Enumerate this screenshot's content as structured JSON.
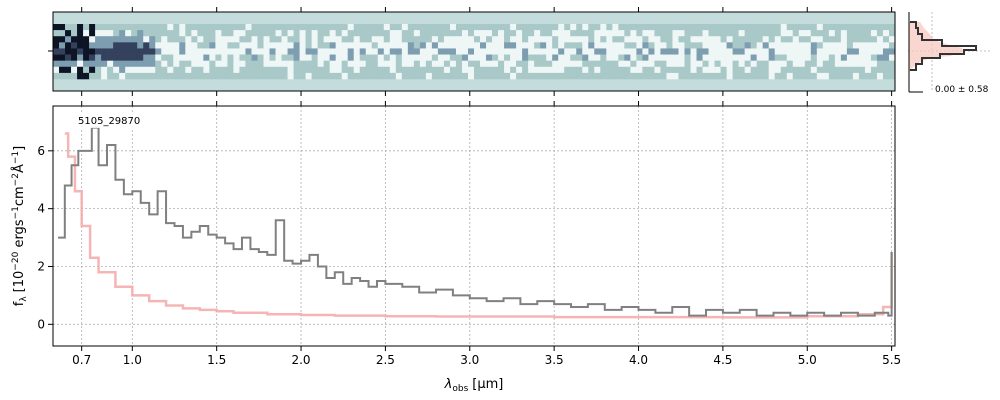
{
  "chart_data": {
    "type": "line",
    "object_id": "5105_29870",
    "xlabel": "λobs [μm]",
    "xlabel_main": "λ",
    "xlabel_sub": "obs",
    "xlabel_unit": "[μm]",
    "ylabel": "fλ [10−20 ergs−1cm−2Å−1]",
    "ylabel_parts": {
      "f": "f",
      "f_sub": "λ",
      "open": "[10",
      "exp1": "−20",
      "mid1": " ergs",
      "exp2": "−1",
      "mid2": "cm",
      "exp3": "−2",
      "mid3": "Å",
      "exp4": "−1",
      "close": "]"
    },
    "x_ticks": [
      "0.7",
      "1.0",
      "1.5",
      "2.0",
      "2.5",
      "3.0",
      "3.5",
      "4.0",
      "4.5",
      "5.0",
      "5.5"
    ],
    "x_tick_values": [
      0.7,
      1.0,
      1.5,
      2.0,
      2.5,
      3.0,
      3.5,
      4.0,
      4.5,
      5.0,
      5.5
    ],
    "y_ticks": [
      "0",
      "2",
      "4",
      "6"
    ],
    "y_tick_values": [
      0,
      2,
      4,
      6
    ],
    "xlim": [
      0.53,
      5.52
    ],
    "ylim": [
      -0.75,
      7.55
    ],
    "grid": true,
    "noise_label": "0.00 ± 0.58",
    "series": [
      {
        "role": "flux",
        "color": "#808080",
        "x": [
          0.56,
          0.6,
          0.64,
          0.68,
          0.72,
          0.76,
          0.8,
          0.85,
          0.9,
          0.95,
          1.0,
          1.05,
          1.1,
          1.15,
          1.2,
          1.25,
          1.3,
          1.35,
          1.4,
          1.45,
          1.5,
          1.55,
          1.6,
          1.65,
          1.7,
          1.75,
          1.8,
          1.85,
          1.9,
          1.95,
          2.0,
          2.05,
          2.1,
          2.15,
          2.2,
          2.25,
          2.3,
          2.35,
          2.4,
          2.45,
          2.5,
          2.6,
          2.7,
          2.8,
          2.9,
          3.0,
          3.1,
          3.2,
          3.3,
          3.4,
          3.5,
          3.6,
          3.7,
          3.8,
          3.9,
          4.0,
          4.1,
          4.2,
          4.3,
          4.4,
          4.5,
          4.6,
          4.7,
          4.8,
          4.9,
          5.0,
          5.1,
          5.2,
          5.3,
          5.4,
          5.48,
          5.5
        ],
        "y": [
          3.0,
          4.8,
          5.5,
          6.0,
          6.0,
          6.8,
          5.5,
          6.2,
          5.0,
          4.5,
          4.6,
          4.2,
          3.8,
          4.6,
          3.5,
          3.4,
          3.0,
          3.2,
          3.4,
          3.1,
          3.0,
          2.8,
          2.6,
          3.0,
          2.6,
          2.5,
          2.4,
          3.6,
          2.2,
          2.1,
          2.2,
          2.4,
          2.0,
          1.6,
          1.8,
          1.4,
          1.6,
          1.5,
          1.3,
          1.5,
          1.4,
          1.3,
          1.1,
          1.2,
          1.0,
          0.9,
          0.8,
          0.9,
          0.7,
          0.8,
          0.7,
          0.6,
          0.7,
          0.5,
          0.6,
          0.5,
          0.4,
          0.6,
          0.3,
          0.5,
          0.4,
          0.5,
          0.3,
          0.4,
          0.3,
          0.4,
          0.3,
          0.4,
          0.3,
          0.4,
          0.3,
          2.5
        ]
      },
      {
        "role": "model",
        "color": "#f5a8a8",
        "x": [
          0.6,
          0.62,
          0.66,
          0.7,
          0.75,
          0.8,
          0.9,
          1.0,
          1.1,
          1.2,
          1.3,
          1.4,
          1.5,
          1.6,
          1.8,
          2.0,
          2.2,
          2.5,
          2.8,
          3.0,
          3.5,
          4.0,
          4.5,
          5.0,
          5.3,
          5.45,
          5.5
        ],
        "y": [
          6.6,
          5.8,
          4.6,
          3.4,
          2.3,
          1.8,
          1.3,
          1.0,
          0.8,
          0.65,
          0.55,
          0.5,
          0.45,
          0.4,
          0.35,
          0.32,
          0.3,
          0.28,
          0.27,
          0.27,
          0.25,
          0.25,
          0.24,
          0.28,
          0.35,
          0.6,
          2.5
        ]
      }
    ]
  }
}
